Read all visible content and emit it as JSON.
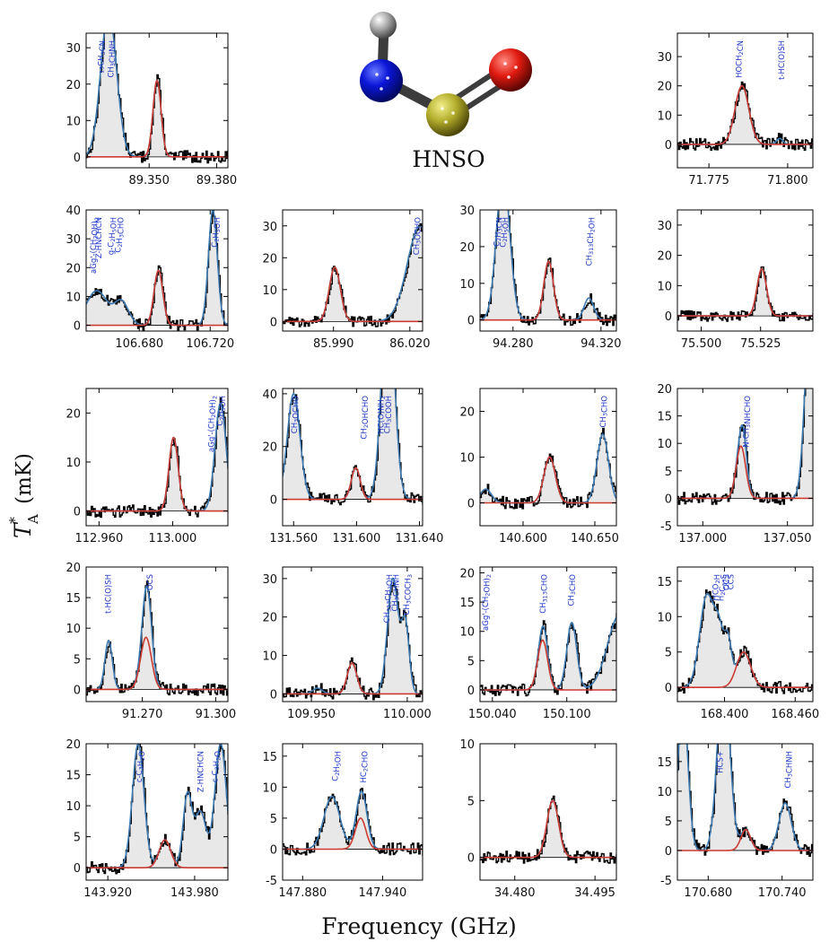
{
  "figure": {
    "ylabel_main": "T",
    "ylabel_sup": "*",
    "ylabel_sub": "A",
    "ylabel_unit": "(mK)",
    "xlabel": "Frequency (GHz)",
    "molecule": "HNSO"
  },
  "colors": {
    "observed": "#000000",
    "total_model": "#3b78b0",
    "hnso_model": "#cc3b32",
    "label": "#1a33c9",
    "shade": "#e8e8e8"
  },
  "chart_data": [
    {
      "type": "line",
      "xlim": [
        89.322,
        89.385
      ],
      "ylim": [
        -3,
        34
      ],
      "xticks": [
        89.35,
        89.38
      ],
      "yticks": [
        0,
        10,
        20,
        30
      ],
      "tick_decimals": 3,
      "series": [
        {
          "name": "HNSO",
          "center": 89.3535,
          "amp": 21,
          "sigma": 0.0018
        },
        {
          "name": "other",
          "center": 89.332,
          "amp": 40,
          "sigma": 0.0035
        }
      ],
      "labels": [
        {
          "text": "13CH3CN",
          "x": 89.328
        },
        {
          "text": "CH3CHNH",
          "x": 89.333
        }
      ]
    },
    {
      "type": "line",
      "xlim": [
        71.765,
        71.808
      ],
      "ylim": [
        -8,
        38
      ],
      "xticks": [
        71.775,
        71.8
      ],
      "yticks": [
        0,
        10,
        20,
        30
      ],
      "tick_decimals": 3,
      "series": [
        {
          "name": "HNSO",
          "center": 71.7855,
          "amp": 20,
          "sigma": 0.0022
        },
        {
          "name": "other",
          "center": 71.7975,
          "amp": 2,
          "sigma": 0.001
        }
      ],
      "labels": [
        {
          "text": "HOCH2CN",
          "x": 71.7845
        },
        {
          "text": "t-HC(O)SH",
          "x": 71.798
        }
      ]
    },
    {
      "type": "line",
      "xlim": [
        106.65,
        106.73
      ],
      "ylim": [
        -2,
        40
      ],
      "xticks": [
        106.68,
        106.72
      ],
      "yticks": [
        0,
        10,
        20,
        30,
        40
      ],
      "tick_decimals": 3,
      "series": [
        {
          "name": "HNSO",
          "center": 106.6908,
          "amp": 19,
          "sigma": 0.0025
        },
        {
          "name": "other",
          "center": 106.7215,
          "amp": 40,
          "sigma": 0.0025
        },
        {
          "name": "other",
          "center": 106.656,
          "amp": 12,
          "sigma": 0.006
        },
        {
          "name": "other",
          "center": 106.67,
          "amp": 8,
          "sigma": 0.004
        }
      ],
      "labels": [
        {
          "text": "aGg'-(CH2OH)2",
          "x": 106.654
        },
        {
          "text": "Z-HNCHCN",
          "x": 106.657
        },
        {
          "text": "g-C2H5OH",
          "x": 106.664
        },
        {
          "text": "C2H3CHO",
          "x": 106.668
        },
        {
          "text": "C2H5OH",
          "x": 106.7225
        }
      ]
    },
    {
      "type": "line",
      "xlim": [
        85.97,
        86.025
      ],
      "ylim": [
        -3,
        35
      ],
      "xticks": [
        85.99,
        86.02
      ],
      "yticks": [
        0,
        10,
        20,
        30
      ],
      "tick_decimals": 3,
      "series": [
        {
          "name": "HNSO",
          "center": 85.9905,
          "amp": 17,
          "sigma": 0.0022
        },
        {
          "name": "other",
          "center": 86.024,
          "amp": 30,
          "sigma": 0.005
        }
      ],
      "labels": [
        {
          "text": "CH3OCHO",
          "x": 86.0225
        }
      ]
    },
    {
      "type": "line",
      "xlim": [
        94.265,
        94.327
      ],
      "ylim": [
        -3,
        30
      ],
      "xticks": [
        94.28,
        94.32
      ],
      "yticks": [
        0,
        10,
        20,
        30
      ],
      "tick_decimals": 3,
      "series": [
        {
          "name": "HNSO",
          "center": 94.2962,
          "amp": 16,
          "sigma": 0.0022
        },
        {
          "name": "other",
          "center": 94.2755,
          "amp": 40,
          "sigma": 0.003
        },
        {
          "name": "other",
          "center": 94.3145,
          "amp": 6,
          "sigma": 0.0022
        }
      ],
      "labels": [
        {
          "text": "C2H3CN",
          "x": 94.2725
        },
        {
          "text": "C2H5OH",
          "x": 94.2755
        },
        {
          "text": "CH313CH2OH",
          "x": 94.3145
        }
      ]
    },
    {
      "type": "line",
      "xlim": [
        75.49,
        75.547
      ],
      "ylim": [
        -5,
        35
      ],
      "xticks": [
        75.5,
        75.525
      ],
      "yticks": [
        0,
        10,
        20,
        30
      ],
      "tick_decimals": 3,
      "series": [
        {
          "name": "HNSO",
          "center": 75.5255,
          "amp": 15.5,
          "sigma": 0.002
        }
      ],
      "labels": []
    },
    {
      "type": "line",
      "xlim": [
        112.953,
        113.03
      ],
      "ylim": [
        -3,
        25
      ],
      "xticks": [
        112.96,
        113.0
      ],
      "yticks": [
        0,
        10,
        20
      ],
      "tick_decimals": 3,
      "series": [
        {
          "name": "HNSO",
          "center": 113.0005,
          "amp": 15,
          "sigma": 0.0025
        },
        {
          "name": "other",
          "center": 113.026,
          "amp": 22,
          "sigma": 0.003
        }
      ],
      "labels": [
        {
          "text": "aGg'-(CH2OH)2",
          "x": 113.021
        },
        {
          "text": "C2H5OH",
          "x": 113.0255
        }
      ]
    },
    {
      "type": "line",
      "xlim": [
        131.553,
        131.642
      ],
      "ylim": [
        -10,
        42
      ],
      "xticks": [
        131.56,
        131.6,
        131.64
      ],
      "yticks": [
        0,
        20,
        40
      ],
      "tick_decimals": 3,
      "series": [
        {
          "name": "HNSO",
          "center": 131.5995,
          "amp": 12,
          "sigma": 0.0028
        },
        {
          "name": "other",
          "center": 131.56,
          "amp": 40,
          "sigma": 0.004
        },
        {
          "name": "other",
          "center": 131.62,
          "amp": 80,
          "sigma": 0.004
        }
      ],
      "labels": [
        {
          "text": "CH3OCHO",
          "x": 131.5605
        },
        {
          "text": "CH2OHCHO",
          "x": 131.6045
        },
        {
          "text": "HC(O)NH2",
          "x": 131.6155
        },
        {
          "text": "CH3COOH",
          "x": 131.6195
        }
      ]
    },
    {
      "type": "line",
      "xlim": [
        140.57,
        140.665
      ],
      "ylim": [
        -5,
        25
      ],
      "xticks": [
        140.6,
        140.65
      ],
      "yticks": [
        0,
        10,
        20
      ],
      "tick_decimals": 3,
      "series": [
        {
          "name": "HNSO",
          "center": 140.6185,
          "amp": 10,
          "sigma": 0.004
        },
        {
          "name": "other",
          "center": 140.6555,
          "amp": 15,
          "sigma": 0.004
        },
        {
          "name": "other",
          "center": 140.574,
          "amp": 3,
          "sigma": 0.004
        }
      ],
      "labels": [
        {
          "text": "CH3CHO",
          "x": 140.6555
        }
      ]
    },
    {
      "type": "line",
      "xlim": [
        136.985,
        137.065
      ],
      "ylim": [
        -5,
        20
      ],
      "xticks": [
        137.0,
        137.05
      ],
      "yticks": [
        -5,
        0,
        5,
        10,
        15,
        20
      ],
      "tick_decimals": 3,
      "series": [
        {
          "name": "HNSO",
          "center": 137.0225,
          "amp": 9.5,
          "sigma": 0.0028
        },
        {
          "name": "other",
          "center": 137.024,
          "amp": 4.5,
          "sigma": 0.002
        },
        {
          "name": "other",
          "center": 137.063,
          "amp": 30,
          "sigma": 0.003
        }
      ],
      "labels": [
        {
          "text": "N-CH3NHCHO",
          "x": 137.0255
        }
      ]
    },
    {
      "type": "line",
      "xlim": [
        91.247,
        91.305
      ],
      "ylim": [
        -2,
        20
      ],
      "xticks": [
        91.27,
        91.3
      ],
      "yticks": [
        0,
        5,
        10,
        15,
        20
      ],
      "tick_decimals": 3,
      "series": [
        {
          "name": "HNSO",
          "center": 91.2715,
          "amp": 8.5,
          "sigma": 0.0022
        },
        {
          "name": "other",
          "center": 91.2562,
          "amp": 8,
          "sigma": 0.0015
        },
        {
          "name": "other",
          "center": 91.272,
          "amp": 8.5,
          "sigma": 0.0018
        }
      ],
      "labels": [
        {
          "text": "t-HC(O)SH",
          "x": 91.256
        },
        {
          "text": "OCS",
          "x": 91.273
        }
      ]
    },
    {
      "type": "line",
      "xlim": [
        109.935,
        110.008
      ],
      "ylim": [
        -2,
        33
      ],
      "xticks": [
        109.95,
        110.0
      ],
      "yticks": [
        0,
        10,
        20,
        30
      ],
      "tick_decimals": 3,
      "series": [
        {
          "name": "HNSO",
          "center": 109.9712,
          "amp": 8,
          "sigma": 0.0025
        },
        {
          "name": "other",
          "center": 109.9532,
          "amp": 1.5,
          "sigma": 0.0025
        },
        {
          "name": "other",
          "center": 109.9925,
          "amp": 30,
          "sigma": 0.0028
        },
        {
          "name": "other",
          "center": 109.999,
          "amp": 18,
          "sigma": 0.002
        }
      ],
      "labels": [
        {
          "text": "CH313CH2OH",
          "x": 109.9893
        },
        {
          "text": "CH3CHNH",
          "x": 109.9935
        },
        {
          "text": "CH3COCH3",
          "x": 109.9995
        }
      ]
    },
    {
      "type": "line",
      "xlim": [
        150.03,
        150.14
      ],
      "ylim": [
        -2,
        21
      ],
      "xticks": [
        150.04,
        150.1
      ],
      "yticks": [
        0,
        5,
        10,
        15,
        20
      ],
      "tick_decimals": 3,
      "series": [
        {
          "name": "HNSO",
          "center": 150.0805,
          "amp": 8.5,
          "sigma": 0.004
        },
        {
          "name": "other",
          "center": 150.0815,
          "amp": 2.5,
          "sigma": 0.003
        },
        {
          "name": "other",
          "center": 150.104,
          "amp": 11.5,
          "sigma": 0.004
        },
        {
          "name": "other",
          "center": 150.143,
          "amp": 13,
          "sigma": 0.01
        }
      ],
      "labels": [
        {
          "text": "aGg'-(CH2OH)2",
          "x": 150.0345
        },
        {
          "text": "CH313CHO",
          "x": 150.0805
        },
        {
          "text": "CH3CHO",
          "x": 150.1035
        }
      ]
    },
    {
      "type": "line",
      "xlim": [
        168.36,
        168.475
      ],
      "ylim": [
        -2,
        17
      ],
      "xticks": [
        168.4,
        168.46
      ],
      "yticks": [
        0,
        5,
        10,
        15
      ],
      "tick_decimals": 3,
      "series": [
        {
          "name": "HNSO",
          "center": 168.4162,
          "amp": 5,
          "sigma": 0.006
        },
        {
          "name": "other",
          "center": 168.385,
          "amp": 13,
          "sigma": 0.006
        },
        {
          "name": "other",
          "center": 168.3955,
          "amp": 7,
          "sigma": 0.004
        },
        {
          "name": "other",
          "center": 168.403,
          "amp": 6,
          "sigma": 0.003
        }
      ],
      "labels": [
        {
          "text": "HCO2H",
          "x": 168.3925
        },
        {
          "text": "H2C33S",
          "x": 168.397
        },
        {
          "text": "OCS",
          "x": 168.4015
        },
        {
          "text": "CCS",
          "x": 168.4055
        }
      ]
    },
    {
      "type": "line",
      "xlim": [
        143.905,
        144.003
      ],
      "ylim": [
        -2,
        20
      ],
      "xticks": [
        143.92,
        143.98
      ],
      "yticks": [
        0,
        5,
        10,
        15,
        20
      ],
      "tick_decimals": 3,
      "series": [
        {
          "name": "HNSO",
          "center": 143.9595,
          "amp": 4.5,
          "sigma": 0.004
        },
        {
          "name": "other",
          "center": 143.941,
          "amp": 20,
          "sigma": 0.004
        },
        {
          "name": "other",
          "center": 143.975,
          "amp": 11.5,
          "sigma": 0.003
        },
        {
          "name": "other",
          "center": 143.998,
          "amp": 20,
          "sigma": 0.004
        },
        {
          "name": "other",
          "center": 143.984,
          "amp": 9,
          "sigma": 0.004
        }
      ],
      "labels": [
        {
          "text": "c-C3H2O",
          "x": 143.9415
        },
        {
          "text": "Z-HNCHCN",
          "x": 143.984
        },
        {
          "text": "c-C3H2O",
          "x": 143.994
        }
      ]
    },
    {
      "type": "line",
      "xlim": [
        147.865,
        147.97
      ],
      "ylim": [
        -5,
        17
      ],
      "xticks": [
        147.88,
        147.94
      ],
      "yticks": [
        -5,
        0,
        5,
        10,
        15
      ],
      "tick_decimals": 3,
      "series": [
        {
          "name": "HNSO",
          "center": 147.9235,
          "amp": 5,
          "sigma": 0.004
        },
        {
          "name": "other",
          "center": 147.902,
          "amp": 8.5,
          "sigma": 0.006
        },
        {
          "name": "other",
          "center": 147.925,
          "amp": 4.5,
          "sigma": 0.004
        }
      ],
      "labels": [
        {
          "text": "C2H5OH",
          "x": 147.9045
        },
        {
          "text": "HC2CHO",
          "x": 147.9255
        }
      ]
    },
    {
      "type": "line",
      "xlim": [
        34.4735,
        34.499
      ],
      "ylim": [
        -2,
        10
      ],
      "xticks": [
        34.48,
        34.495
      ],
      "yticks": [
        0,
        5,
        10
      ],
      "tick_decimals": 3,
      "series": [
        {
          "name": "HNSO",
          "center": 34.4871,
          "amp": 5,
          "sigma": 0.0011
        }
      ],
      "labels": []
    },
    {
      "type": "line",
      "xlim": [
        170.655,
        170.765
      ],
      "ylim": [
        -5,
        18
      ],
      "xticks": [
        170.68,
        170.74
      ],
      "yticks": [
        -5,
        0,
        5,
        10,
        15
      ],
      "tick_decimals": 3,
      "series": [
        {
          "name": "HNSO",
          "center": 170.7105,
          "amp": 3.5,
          "sigma": 0.004
        },
        {
          "name": "other",
          "center": 170.6925,
          "amp": 30,
          "sigma": 0.005
        },
        {
          "name": "other",
          "center": 170.6595,
          "amp": 25,
          "sigma": 0.004
        },
        {
          "name": "other",
          "center": 170.7425,
          "amp": 8,
          "sigma": 0.005
        }
      ],
      "labels": [
        {
          "text": "HCS+",
          "x": 170.6895
        },
        {
          "text": "CH3CHNH",
          "x": 170.7445
        }
      ]
    }
  ]
}
